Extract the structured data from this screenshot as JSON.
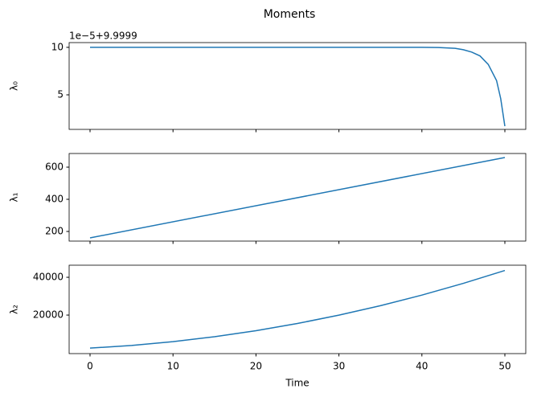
{
  "title": "Moments",
  "chart_data": [
    {
      "type": "line",
      "ylabel": "λ₀",
      "offset_text": "1e−5+9.9999",
      "color": "#1f77b4",
      "x": [
        0,
        5,
        10,
        15,
        20,
        25,
        30,
        35,
        40,
        42,
        44,
        45,
        46,
        47,
        48,
        49,
        49.5,
        50
      ],
      "values": [
        10,
        10,
        10,
        10,
        10,
        10,
        10,
        10,
        10,
        9.98,
        9.9,
        9.75,
        9.5,
        9.1,
        8.2,
        6.5,
        4.6,
        1.7
      ],
      "xlim": [
        -2.52,
        52.52
      ],
      "xticks": [
        0,
        10,
        20,
        30,
        40,
        50
      ],
      "ylim": [
        1.36,
        10.5
      ],
      "yticks": [
        5,
        10
      ]
    },
    {
      "type": "line",
      "ylabel": "λ₁",
      "color": "#1f77b4",
      "x": [
        0,
        50
      ],
      "values": [
        160,
        660
      ],
      "xlim": [
        -2.52,
        52.52
      ],
      "xticks": [
        0,
        10,
        20,
        30,
        40,
        50
      ],
      "ylim": [
        140,
        685
      ],
      "yticks": [
        200,
        400,
        600
      ]
    },
    {
      "type": "line",
      "ylabel": "λ₂",
      "xlabel": "Time",
      "color": "#1f77b4",
      "x": [
        0,
        5,
        10,
        15,
        20,
        25,
        30,
        35,
        40,
        45,
        50
      ],
      "values": [
        2500,
        3910,
        5920,
        8530,
        11740,
        15550,
        19960,
        24970,
        30580,
        36790,
        43600
      ],
      "xlim": [
        -2.52,
        52.52
      ],
      "xticks": [
        0,
        10,
        20,
        30,
        40,
        50
      ],
      "ylim": [
        -400,
        46400
      ],
      "yticks": [
        20000,
        40000
      ]
    }
  ]
}
